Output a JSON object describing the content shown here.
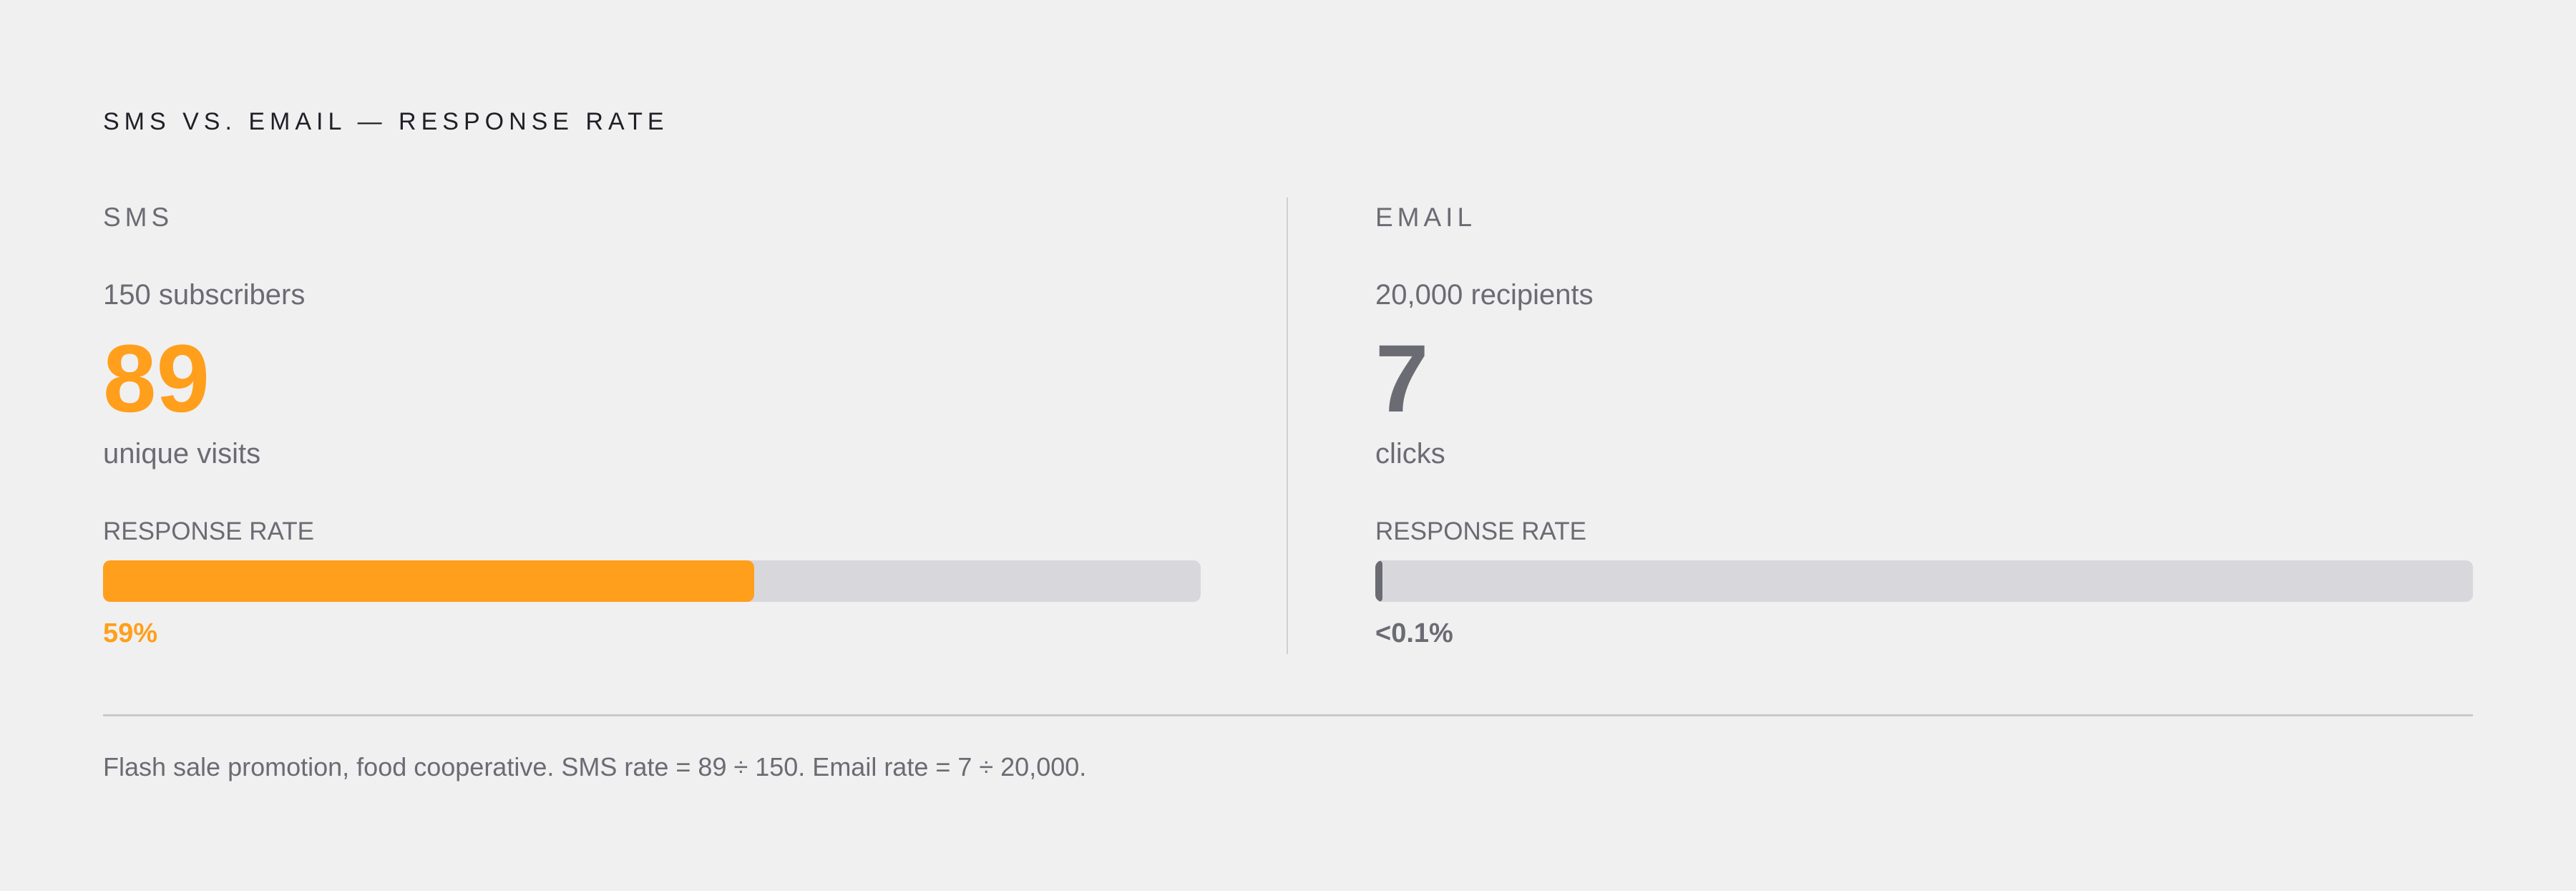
{
  "title": "SMS VS. EMAIL — RESPONSE RATE",
  "panels": {
    "sms": {
      "label": "SMS",
      "audience": "150 subscribers",
      "count": "89",
      "metric": "unique visits",
      "rate_label": "RESPONSE RATE",
      "rate_text": "59%",
      "rate_fraction": 0.593,
      "color": "#ff9f1c"
    },
    "email": {
      "label": "EMAIL",
      "audience": "20,000 recipients",
      "count": "7",
      "metric": "clicks",
      "rate_label": "RESPONSE RATE",
      "rate_text": "<0.1%",
      "rate_fraction": 0.00035,
      "color": "#6b6b73"
    }
  },
  "footnote": "Flash sale promotion, food cooperative. SMS rate = 89 ÷ 150. Email rate = 7 ÷ 20,000.",
  "chart_data": {
    "type": "bar",
    "title": "SMS VS. EMAIL — RESPONSE RATE",
    "categories": [
      "SMS",
      "EMAIL"
    ],
    "values": [
      0.593,
      0.00035
    ],
    "value_labels": [
      "59%",
      "<0.1%"
    ],
    "counts": [
      89,
      7
    ],
    "audience": [
      150,
      20000
    ],
    "ylim": [
      0,
      1
    ],
    "orientation": "horizontal",
    "grid": false
  }
}
